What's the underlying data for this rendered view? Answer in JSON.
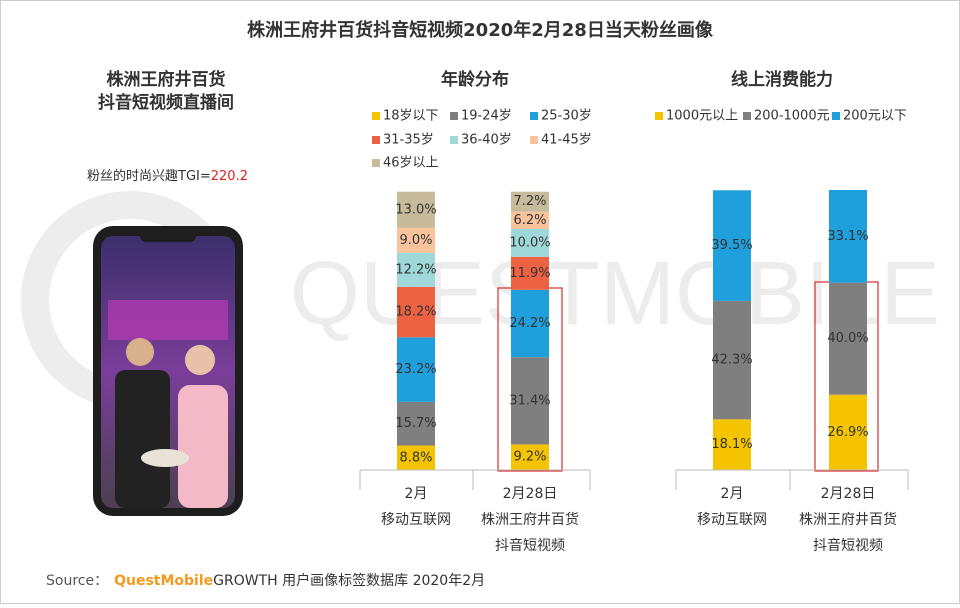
{
  "title": "株洲王府井百货抖音短视频2020年2月28日当天粉丝画像",
  "left_panel": {
    "title_lines": [
      "株洲王府井百货",
      "抖音短视频直播间"
    ],
    "tgi_label": "粉丝的时尚兴趣TGI=",
    "tgi_value": 220.2
  },
  "source": {
    "prefix": "Source：",
    "brand": "QuestMobile",
    "text": "GROWTH 用户画像标签数据库 2020年2月"
  },
  "chart_data": [
    {
      "type": "stacked_bar",
      "title": "年龄分布",
      "categories": [
        [
          "2月",
          "移动互联网"
        ],
        [
          "2月28日",
          "株洲王府井百货",
          "抖音短视频"
        ]
      ],
      "ylim": [
        0,
        100
      ],
      "series": [
        {
          "name": "18岁以下",
          "color": "#f5c400",
          "values": [
            8.8,
            9.2
          ],
          "value_labels": [
            "8.8%",
            "9.2%"
          ]
        },
        {
          "name": "19-24岁",
          "color": "#7f7f7f",
          "values": [
            15.7,
            31.4
          ],
          "value_labels": [
            "15.7%",
            "31.4%"
          ]
        },
        {
          "name": "25-30岁",
          "color": "#1fa0dc",
          "values": [
            23.2,
            24.2
          ],
          "value_labels": [
            "23.2%",
            "24.2%"
          ]
        },
        {
          "name": "31-35岁",
          "color": "#ec6243",
          "values": [
            18.2,
            11.9
          ],
          "value_labels": [
            "18.2%",
            "11.9%"
          ]
        },
        {
          "name": "36-40岁",
          "color": "#9fd8d8",
          "values": [
            12.2,
            10.0
          ],
          "value_labels": [
            "12.2%",
            "10.0%"
          ]
        },
        {
          "name": "41-45岁",
          "color": "#f9c49c",
          "values": [
            9.0,
            6.2
          ],
          "value_labels": [
            "9.0%",
            "6.2%"
          ]
        },
        {
          "name": "46岁以上",
          "color": "#c8bb9c",
          "values": [
            13.0,
            7.2
          ],
          "value_labels": [
            "13.0%",
            "7.2%"
          ]
        }
      ]
    },
    {
      "type": "stacked_bar",
      "title": "线上消费能力",
      "categories": [
        [
          "2月",
          "移动互联网"
        ],
        [
          "2月28日",
          "株洲王府井百货",
          "抖音短视频"
        ]
      ],
      "ylim": [
        0,
        100
      ],
      "series": [
        {
          "name": "1000元以上",
          "color": "#f5c400",
          "values": [
            18.1,
            26.9
          ],
          "value_labels": [
            "18.1%",
            "26.9%"
          ]
        },
        {
          "name": "200-1000元",
          "color": "#7f7f7f",
          "values": [
            42.3,
            40.0
          ],
          "value_labels": [
            "42.3%",
            "40.0%"
          ]
        },
        {
          "name": "200元以下",
          "color": "#1fa0dc",
          "values": [
            39.5,
            33.1
          ],
          "value_labels": [
            "39.5%",
            "33.1%"
          ]
        }
      ]
    }
  ]
}
